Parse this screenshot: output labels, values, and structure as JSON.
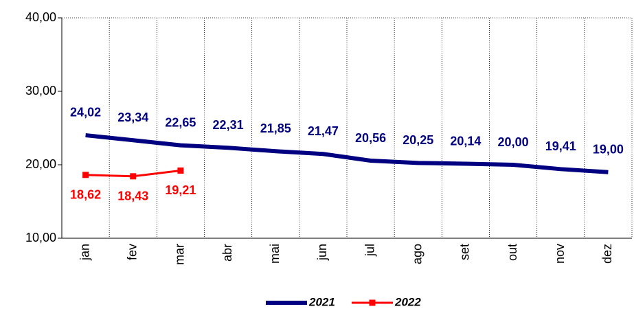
{
  "chart_data": {
    "type": "line",
    "categories": [
      "jan",
      "fev",
      "mar",
      "abr",
      "mai",
      "jun",
      "jul",
      "ago",
      "set",
      "out",
      "nov",
      "dez"
    ],
    "series": [
      {
        "name": "2021",
        "color": "#000080",
        "values": [
          24.02,
          23.34,
          22.65,
          22.31,
          21.85,
          21.47,
          20.56,
          20.25,
          20.14,
          20.0,
          19.41,
          19.0
        ],
        "value_labels": [
          "24,02",
          "23,34",
          "22,65",
          "22,31",
          "21,85",
          "21,47",
          "20,56",
          "20,25",
          "20,14",
          "20,00",
          "19,41",
          "19,00"
        ]
      },
      {
        "name": "2022",
        "color": "#ff0000",
        "values": [
          18.62,
          18.43,
          19.21,
          null,
          null,
          null,
          null,
          null,
          null,
          null,
          null,
          null
        ],
        "value_labels": [
          "18,62",
          "18,43",
          "19,21",
          null,
          null,
          null,
          null,
          null,
          null,
          null,
          null,
          null
        ]
      }
    ],
    "ylim": [
      10,
      40
    ],
    "yticks": [
      {
        "value": 10,
        "label": "10,00"
      },
      {
        "value": 20,
        "label": "20,00"
      },
      {
        "value": 30,
        "label": "30,00"
      },
      {
        "value": 40,
        "label": "40,00"
      }
    ],
    "legend": "bottom"
  }
}
